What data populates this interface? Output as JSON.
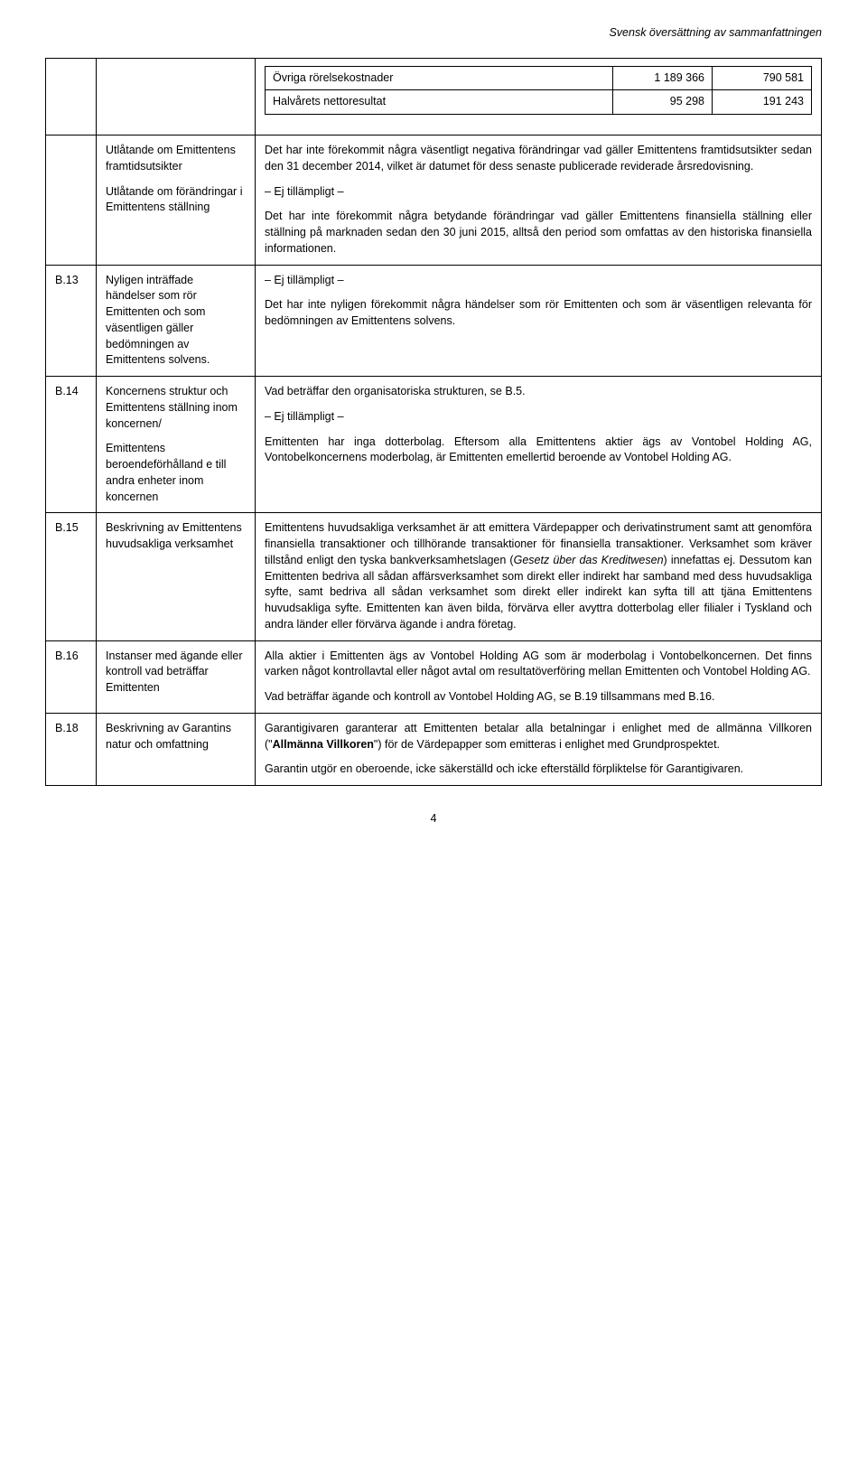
{
  "header": {
    "right_text": "Svensk översättning av sammanfattningen"
  },
  "inner_table": {
    "rows": [
      {
        "label": "Övriga rörelsekostnader",
        "v1": "1 189 366",
        "v2": "790 581"
      },
      {
        "label": "Halvårets nettoresultat",
        "v1": "95 298",
        "v2": "191 243"
      }
    ]
  },
  "top_block": {
    "left": {
      "p1": "Utlåtande om Emittentens framtidsutsikter",
      "p2": "Utlåtande om förändringar i Emittentens ställning"
    },
    "right": {
      "p1": "Det har inte förekommit några väsentligt negativa förändringar vad gäller Emittentens framtidsutsikter sedan den 31 december 2014, vilket är datumet för dess senaste publicerade reviderade årsredovisning.",
      "p2": "– Ej tillämpligt –",
      "p3": "Det har inte förekommit några betydande förändringar vad gäller Emittentens finansiella ställning eller ställning på marknaden sedan den 30 juni 2015, alltså den period som omfattas av den historiska finansiella informationen."
    }
  },
  "rows": {
    "b13": {
      "code": "B.13",
      "label": "Nyligen inträffade händelser som rör Emittenten och som väsentligen gäller bedömningen av Emittentens solvens.",
      "body": {
        "p1": "– Ej tillämpligt –",
        "p2": "Det har inte nyligen förekommit några händelser som rör Emittenten och som är väsentligen relevanta för bedömningen av Emittentens solvens."
      }
    },
    "b14": {
      "code": "B.14",
      "label_p1": "Koncernens struktur och Emittentens ställning inom koncernen/",
      "label_p2": "Emittentens beroendeförhålland e till andra enheter inom koncernen",
      "body": {
        "p1": "Vad beträffar den organisatoriska strukturen, se B.5.",
        "p2": "– Ej tillämpligt –",
        "p3": "Emittenten har inga dotterbolag. Eftersom alla Emittentens aktier ägs av Vontobel Holding AG, Vontobelkoncernens moderbolag, är Emittenten emellertid beroende av Vontobel Holding AG."
      }
    },
    "b15": {
      "code": "B.15",
      "label": "Beskrivning av Emittentens huvudsakliga verksamhet",
      "body": {
        "p1_a": "Emittentens huvudsakliga verksamhet är att emittera Värdepapper och derivatinstrument samt att genomföra finansiella transaktioner och tillhörande transaktioner för finansiella transaktioner. Verksamhet som kräver tillstånd enligt den tyska bankverksamhetslagen (",
        "p1_em": "Gesetz über das Kreditwesen",
        "p1_b": ") innefattas ej. Dessutom kan Emittenten bedriva all sådan affärsverksamhet som direkt eller indirekt har samband med dess huvudsakliga syfte, samt bedriva all sådan verksamhet som direkt eller indirekt kan syfta till att tjäna Emittentens huvudsakliga syfte. Emittenten kan även bilda, förvärva eller avyttra dotterbolag eller filialer i Tyskland och andra länder eller förvärva ägande i andra företag."
      }
    },
    "b16": {
      "code": "B.16",
      "label": "Instanser med ägande eller kontroll vad beträffar Emittenten",
      "body": {
        "p1": "Alla aktier i Emittenten ägs av Vontobel Holding AG som är moderbolag i Vontobelkoncernen. Det finns varken något kontrollavtal eller något avtal om resultatöverföring mellan Emittenten och Vontobel Holding AG.",
        "p2": "Vad beträffar ägande och kontroll av Vontobel Holding AG, se B.19 tillsammans med B.16."
      }
    },
    "b18": {
      "code": "B.18",
      "label": "Beskrivning av Garantins natur och omfattning",
      "body": {
        "p1_a": "Garantigivaren garanterar att Emittenten betalar alla betalningar i enlighet med de allmänna Villkoren (\"",
        "p1_strong": "Allmänna Villkoren",
        "p1_b": "\") för de Värdepapper som emitteras i enlighet med Grundprospektet.",
        "p2": "Garantin utgör en oberoende, icke säkerställd och icke efterställd förpliktelse för Garantigivaren."
      }
    }
  },
  "page_number": "4"
}
